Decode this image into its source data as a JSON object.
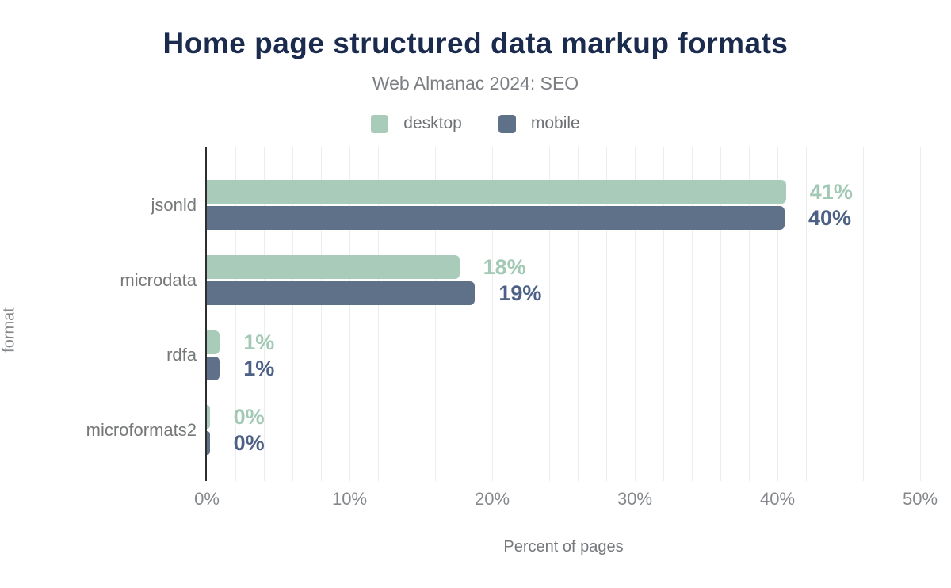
{
  "header": {
    "title": "Home page structured data markup formats",
    "subtitle": "Web Almanac 2024: SEO"
  },
  "legend": {
    "items": [
      {
        "label": "desktop",
        "color": "#a8cbba"
      },
      {
        "label": "mobile",
        "color": "#5f7089"
      }
    ]
  },
  "colors": {
    "title": "#1b2b4d",
    "desktop_bar": "#a8cbba",
    "mobile_bar": "#5f7089",
    "desktop_value_label": "#a2c9b6",
    "mobile_value_label": "#4d6186",
    "axis_line": "#2e2e2e",
    "gridline": "#ededed",
    "muted_text": "#757779"
  },
  "chart_data": {
    "type": "bar",
    "orientation": "horizontal",
    "title": "Home page structured data markup formats",
    "subtitle": "Web Almanac 2024: SEO",
    "xlabel": "Percent of pages",
    "ylabel": "format",
    "xlim": [
      0,
      50
    ],
    "x_tick_step": 10,
    "minor_grid_step": 2,
    "grid": true,
    "legend_position": "top",
    "categories": [
      "jsonld",
      "microdata",
      "rdfa",
      "microformats2"
    ],
    "series": [
      {
        "name": "desktop",
        "values": [
          40.6,
          17.7,
          0.9,
          0.2
        ],
        "labels": [
          "41%",
          "18%",
          "1%",
          "0%"
        ]
      },
      {
        "name": "mobile",
        "values": [
          40.5,
          18.8,
          0.9,
          0.2
        ],
        "labels": [
          "40%",
          "19%",
          "1%",
          "0%"
        ]
      }
    ],
    "x_ticks": [
      "0%",
      "10%",
      "20%",
      "30%",
      "40%",
      "50%"
    ]
  }
}
